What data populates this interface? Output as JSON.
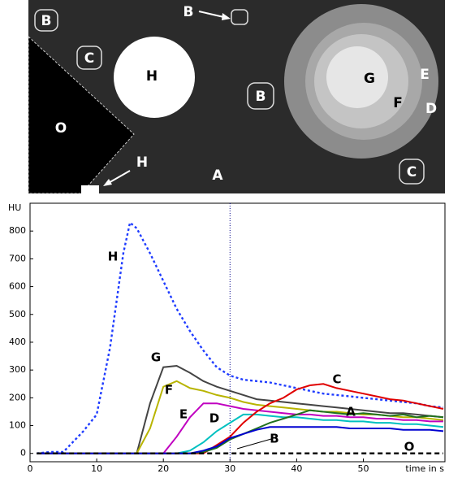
{
  "image": {
    "labels": [
      "B",
      "B",
      "C",
      "H",
      "B",
      "G",
      "E",
      "F",
      "D",
      "O",
      "H",
      "A",
      "C"
    ]
  },
  "chart_data": {
    "type": "line",
    "ylabel": "HU",
    "xlabel": "time in s",
    "xlim": [
      0,
      62
    ],
    "ylim": [
      -30,
      900
    ],
    "xticks": [
      0,
      10,
      20,
      30,
      40,
      50
    ],
    "yticks": [
      0,
      100,
      200,
      300,
      400,
      500,
      600,
      700,
      800
    ],
    "vline": 30,
    "x": [
      1,
      3,
      5,
      8,
      10,
      12,
      14,
      15,
      16,
      18,
      20,
      22,
      24,
      26,
      28,
      30,
      32,
      34,
      36,
      38,
      40,
      42,
      44,
      46,
      48,
      50,
      52,
      54,
      56,
      58,
      60,
      62
    ],
    "series": [
      {
        "name": "H",
        "color": "#1f3cff",
        "style": "dotted",
        "values": [
          0,
          5,
          5,
          80,
          140,
          380,
          720,
          830,
          810,
          720,
          620,
          520,
          440,
          370,
          310,
          280,
          265,
          260,
          255,
          245,
          235,
          225,
          215,
          210,
          205,
          200,
          195,
          190,
          185,
          180,
          170,
          165
        ]
      },
      {
        "name": "G",
        "color": "#444444",
        "style": "solid",
        "values": [
          0,
          0,
          0,
          0,
          0,
          0,
          0,
          0,
          0,
          180,
          310,
          315,
          290,
          260,
          240,
          225,
          210,
          195,
          190,
          185,
          180,
          175,
          170,
          165,
          160,
          155,
          150,
          145,
          145,
          140,
          135,
          130
        ]
      },
      {
        "name": "F",
        "color": "#b8b400",
        "style": "solid",
        "values": [
          0,
          0,
          0,
          0,
          0,
          0,
          0,
          0,
          0,
          90,
          240,
          260,
          235,
          225,
          210,
          200,
          185,
          175,
          170,
          165,
          160,
          155,
          150,
          150,
          145,
          140,
          140,
          135,
          130,
          130,
          125,
          120
        ]
      },
      {
        "name": "E",
        "color": "#c000c0",
        "style": "solid",
        "values": [
          0,
          0,
          0,
          0,
          0,
          0,
          0,
          0,
          0,
          0,
          0,
          60,
          130,
          180,
          180,
          170,
          160,
          155,
          150,
          145,
          140,
          140,
          135,
          135,
          130,
          130,
          125,
          125,
          120,
          120,
          115,
          115
        ]
      },
      {
        "name": "D",
        "color": "#00c0c0",
        "style": "solid",
        "values": [
          0,
          0,
          0,
          0,
          0,
          0,
          0,
          0,
          0,
          0,
          0,
          0,
          10,
          40,
          80,
          110,
          140,
          140,
          135,
          130,
          130,
          125,
          120,
          120,
          115,
          115,
          110,
          110,
          105,
          105,
          100,
          95
        ]
      },
      {
        "name": "C",
        "color": "#e00000",
        "style": "solid",
        "values": [
          0,
          0,
          0,
          0,
          0,
          0,
          0,
          0,
          0,
          0,
          0,
          0,
          0,
          0,
          30,
          60,
          110,
          150,
          180,
          200,
          230,
          245,
          250,
          235,
          225,
          215,
          205,
          195,
          190,
          180,
          170,
          160
        ]
      },
      {
        "name": "B",
        "color": "#207020",
        "style": "solid",
        "values": [
          0,
          0,
          0,
          0,
          0,
          0,
          0,
          0,
          0,
          0,
          0,
          0,
          0,
          5,
          20,
          50,
          70,
          90,
          110,
          125,
          140,
          155,
          150,
          145,
          140,
          145,
          140,
          135,
          140,
          130,
          135,
          130
        ]
      },
      {
        "name": "A",
        "color": "#0000d0",
        "style": "solid",
        "values": [
          0,
          0,
          0,
          0,
          0,
          0,
          0,
          0,
          0,
          0,
          0,
          0,
          0,
          10,
          25,
          55,
          70,
          85,
          95,
          95,
          95,
          95,
          95,
          95,
          90,
          90,
          90,
          90,
          85,
          85,
          85,
          80
        ]
      },
      {
        "name": "O",
        "color": "#000000",
        "style": "dashed",
        "values": [
          0,
          0,
          0,
          0,
          0,
          0,
          0,
          0,
          0,
          0,
          0,
          0,
          0,
          0,
          0,
          0,
          0,
          0,
          0,
          0,
          0,
          0,
          0,
          0,
          0,
          0,
          0,
          0,
          0,
          0,
          0,
          0
        ]
      }
    ]
  }
}
